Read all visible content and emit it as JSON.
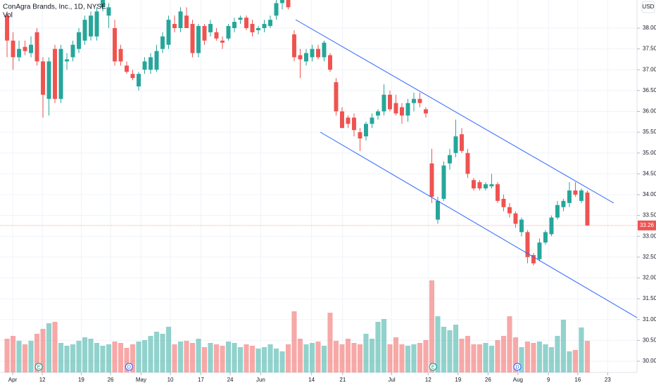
{
  "chart_data": {
    "type": "candlestick",
    "title": "ConAgra Brands, Inc., 1D, NYSE",
    "volume_label": "Vol",
    "currency": "USD",
    "open": [
      38.3,
      37.7,
      37.3,
      37.55,
      37.4,
      37.9,
      37.2,
      36.3,
      37.5,
      36.3,
      37.2,
      37.3,
      37.5,
      37.7,
      37.8,
      37.8,
      38.5,
      38.3,
      38.0,
      37.5,
      37.1,
      36.9,
      36.6,
      37.0,
      37.0,
      37.0,
      37.5,
      37.6,
      38.1,
      38.0,
      38.3,
      38.1,
      37.4,
      38.05,
      37.9,
      37.9,
      37.7,
      37.75,
      38.0,
      38.2,
      38.25,
      38.1,
      37.95,
      38.0,
      38.05,
      38.3,
      38.6,
      38.7,
      37.85,
      37.35,
      37.2,
      37.3,
      37.5,
      37.3,
      37.35,
      36.7,
      36.0,
      35.85,
      35.85,
      35.5,
      35.4,
      35.7,
      35.9,
      36.0,
      36.4,
      36.2,
      36.1,
      35.9,
      36.2,
      36.3,
      36.05,
      34.75,
      33.4,
      33.9,
      34.75,
      35.0,
      35.45,
      35.0,
      34.35,
      34.3,
      34.15,
      34.2,
      34.25,
      33.9,
      33.7,
      33.55,
      33.1,
      33.1,
      32.55,
      32.45,
      32.85,
      33.05,
      33.45,
      33.7,
      33.8,
      34.1,
      33.85,
      34.05
    ],
    "high": [
      38.4,
      37.9,
      37.7,
      37.7,
      37.8,
      38.0,
      37.3,
      37.3,
      37.6,
      37.6,
      37.4,
      37.7,
      38.0,
      38.3,
      38.4,
      38.5,
      38.8,
      38.6,
      38.2,
      37.6,
      37.2,
      37.0,
      36.95,
      37.3,
      37.4,
      37.6,
      37.9,
      38.3,
      38.3,
      38.5,
      38.5,
      38.2,
      38.1,
      38.1,
      38.2,
      38.0,
      37.8,
      38.1,
      38.25,
      38.3,
      38.3,
      38.2,
      38.05,
      38.2,
      38.3,
      38.7,
      38.75,
      38.75,
      37.95,
      37.5,
      37.5,
      37.6,
      37.6,
      37.7,
      37.4,
      36.8,
      36.1,
      35.9,
      35.95,
      35.6,
      35.75,
      35.95,
      36.05,
      36.65,
      36.5,
      36.4,
      36.2,
      36.3,
      36.45,
      36.45,
      36.1,
      35.1,
      33.95,
      34.8,
      35.1,
      35.8,
      35.6,
      35.1,
      34.4,
      34.35,
      34.3,
      34.5,
      34.3,
      34.0,
      33.8,
      33.6,
      33.45,
      33.15,
      32.6,
      32.95,
      33.15,
      33.5,
      33.85,
      33.9,
      34.3,
      34.3,
      34.15,
      34.1
    ],
    "low": [
      37.3,
      37.0,
      37.2,
      37.35,
      37.3,
      37.1,
      35.85,
      35.9,
      36.2,
      36.2,
      37.0,
      37.2,
      37.4,
      37.6,
      37.7,
      37.7,
      38.4,
      38.0,
      37.1,
      37.1,
      36.9,
      36.75,
      36.5,
      36.9,
      36.9,
      36.95,
      37.4,
      37.5,
      37.9,
      37.9,
      38.0,
      37.3,
      37.3,
      37.6,
      37.8,
      37.7,
      37.5,
      37.7,
      37.9,
      38.1,
      37.95,
      37.8,
      37.85,
      37.9,
      38.0,
      38.2,
      38.45,
      38.45,
      37.2,
      36.8,
      37.1,
      37.2,
      37.25,
      37.2,
      36.95,
      35.9,
      35.6,
      35.6,
      35.4,
      35.05,
      35.3,
      35.6,
      35.8,
      35.9,
      36.0,
      35.9,
      35.7,
      35.75,
      36.0,
      36.1,
      35.85,
      33.8,
      33.3,
      33.85,
      34.6,
      34.9,
      35.0,
      34.4,
      34.1,
      34.1,
      34.1,
      34.15,
      33.8,
      33.6,
      33.45,
      33.2,
      33.0,
      32.35,
      32.3,
      32.4,
      32.8,
      33.0,
      33.4,
      33.6,
      33.7,
      33.95,
      33.8,
      33.25
    ],
    "close": [
      37.7,
      37.3,
      37.5,
      37.45,
      37.6,
      37.2,
      36.4,
      37.2,
      36.3,
      37.5,
      37.25,
      37.6,
      37.9,
      38.2,
      38.3,
      38.4,
      38.7,
      38.5,
      37.2,
      37.2,
      36.95,
      36.8,
      36.9,
      37.2,
      37.3,
      37.45,
      37.8,
      38.2,
      38.0,
      38.4,
      38.0,
      37.4,
      38.05,
      37.7,
      38.1,
      37.75,
      37.65,
      38.05,
      38.15,
      38.25,
      38.0,
      37.9,
      38.0,
      38.1,
      38.2,
      38.6,
      38.7,
      38.5,
      37.3,
      37.25,
      37.4,
      37.5,
      37.3,
      37.65,
      37.0,
      36.0,
      35.6,
      35.7,
      35.55,
      35.35,
      35.7,
      35.85,
      36.0,
      36.4,
      36.05,
      35.95,
      35.9,
      36.2,
      36.3,
      36.2,
      35.95,
      33.95,
      33.85,
      34.7,
      34.95,
      35.4,
      35.05,
      34.5,
      34.15,
      34.15,
      34.25,
      34.25,
      33.85,
      33.7,
      33.55,
      33.3,
      33.4,
      32.5,
      32.35,
      32.85,
      33.1,
      33.45,
      33.75,
      33.85,
      34.1,
      34.0,
      34.1,
      33.26
    ],
    "volume": [
      48,
      52,
      45,
      40,
      45,
      55,
      62,
      70,
      72,
      42,
      38,
      40,
      45,
      50,
      48,
      42,
      38,
      40,
      44,
      42,
      35,
      40,
      44,
      46,
      52,
      58,
      55,
      65,
      40,
      44,
      45,
      42,
      48,
      36,
      42,
      40,
      38,
      44,
      42,
      36,
      40,
      38,
      34,
      36,
      40,
      34,
      30,
      40,
      87,
      48,
      40,
      42,
      44,
      38,
      85,
      45,
      40,
      48,
      42,
      40,
      55,
      48,
      72,
      76,
      40,
      50,
      40,
      38,
      40,
      42,
      46,
      131,
      80,
      65,
      60,
      68,
      48,
      52,
      40,
      40,
      42,
      38,
      46,
      52,
      80,
      50,
      36,
      44,
      42,
      44,
      40,
      36,
      52,
      75,
      30,
      32,
      64,
      45
    ],
    "last_price": 33.26,
    "up_color": "#26a69a",
    "down_color": "#ef5350",
    "xlim": [
      -1.18,
      105.3
    ],
    "xticks": [
      {
        "value": 0.94,
        "label": "Apr"
      },
      {
        "value": 5.9,
        "label": "12"
      },
      {
        "value": 12.4,
        "label": "19"
      },
      {
        "value": 17.3,
        "label": "26"
      },
      {
        "value": 22.4,
        "label": "May"
      },
      {
        "value": 27.3,
        "label": "10"
      },
      {
        "value": 32.4,
        "label": "17"
      },
      {
        "value": 37.3,
        "label": "24"
      },
      {
        "value": 42.4,
        "label": "Jun"
      },
      {
        "value": 50.9,
        "label": "14"
      },
      {
        "value": 56.1,
        "label": "21"
      },
      {
        "value": 64.3,
        "label": "Jul"
      },
      {
        "value": 70.4,
        "label": "12"
      },
      {
        "value": 75.4,
        "label": "19"
      },
      {
        "value": 80.4,
        "label": "26"
      },
      {
        "value": 85.4,
        "label": "Aug"
      },
      {
        "value": 90.5,
        "label": "9"
      },
      {
        "value": 95.4,
        "label": "16"
      },
      {
        "value": 100.4,
        "label": "23"
      }
    ],
    "ylim": [
      29.73,
      38.675
    ],
    "yticks": [
      {
        "value": 30,
        "label": "30.00"
      },
      {
        "value": 30.5,
        "label": "30.50"
      },
      {
        "value": 31,
        "label": "31.00"
      },
      {
        "value": 31.5,
        "label": "31.50"
      },
      {
        "value": 32,
        "label": "32.00"
      },
      {
        "value": 32.5,
        "label": "32.50"
      },
      {
        "value": 33,
        "label": "33.00"
      },
      {
        "value": 33.5,
        "label": "33.50"
      },
      {
        "value": 34,
        "label": "34.00"
      },
      {
        "value": 34.5,
        "label": "34.50"
      },
      {
        "value": 35,
        "label": "35.00"
      },
      {
        "value": 35.5,
        "label": "35.50"
      },
      {
        "value": 36,
        "label": "36.00"
      },
      {
        "value": 36.5,
        "label": "36.50"
      },
      {
        "value": 37,
        "label": "37.00"
      },
      {
        "value": 37.5,
        "label": "37.50"
      },
      {
        "value": 38,
        "label": "38.00"
      }
    ],
    "events": [
      {
        "label": "E",
        "x": 5.3
      },
      {
        "label": "D",
        "x": 20.4
      },
      {
        "label": "E",
        "x": 71.2
      },
      {
        "label": "D",
        "x": 85.3
      }
    ]
  }
}
